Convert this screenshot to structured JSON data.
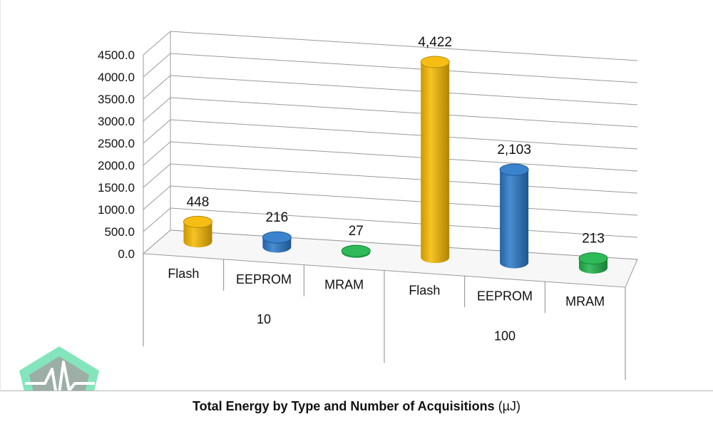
{
  "chart_data": {
    "type": "bar",
    "style": "3d-cylinder",
    "title": "Total Energy by Type and Number of Acquisitions",
    "unit": "(µJ)",
    "groups": [
      {
        "label": "10",
        "bars": [
          {
            "label": "Flash",
            "value": 448,
            "value_label": "448",
            "color": "#f5b800"
          },
          {
            "label": "EEPROM",
            "value": 216,
            "value_label": "216",
            "color": "#2a78c8"
          },
          {
            "label": "MRAM",
            "value": 27,
            "value_label": "27",
            "color": "#1db34a"
          }
        ]
      },
      {
        "label": "100",
        "bars": [
          {
            "label": "Flash",
            "value": 4422,
            "value_label": "4,422",
            "color": "#f5b800"
          },
          {
            "label": "EEPROM",
            "value": 2103,
            "value_label": "2,103",
            "color": "#2a78c8"
          },
          {
            "label": "MRAM",
            "value": 213,
            "value_label": "213",
            "color": "#1db34a"
          }
        ]
      }
    ],
    "y_ticks": [
      "0.0",
      "500.0",
      "1000.0",
      "1500.0",
      "2000.0",
      "2500.0",
      "3000.0",
      "3500.0",
      "4000.0",
      "4500.0"
    ],
    "ylim": [
      0,
      4500
    ],
    "grid": true,
    "legend": "none"
  },
  "logo": {
    "name": "pulse-pentagon-logo",
    "color": "#6fe0b0"
  }
}
